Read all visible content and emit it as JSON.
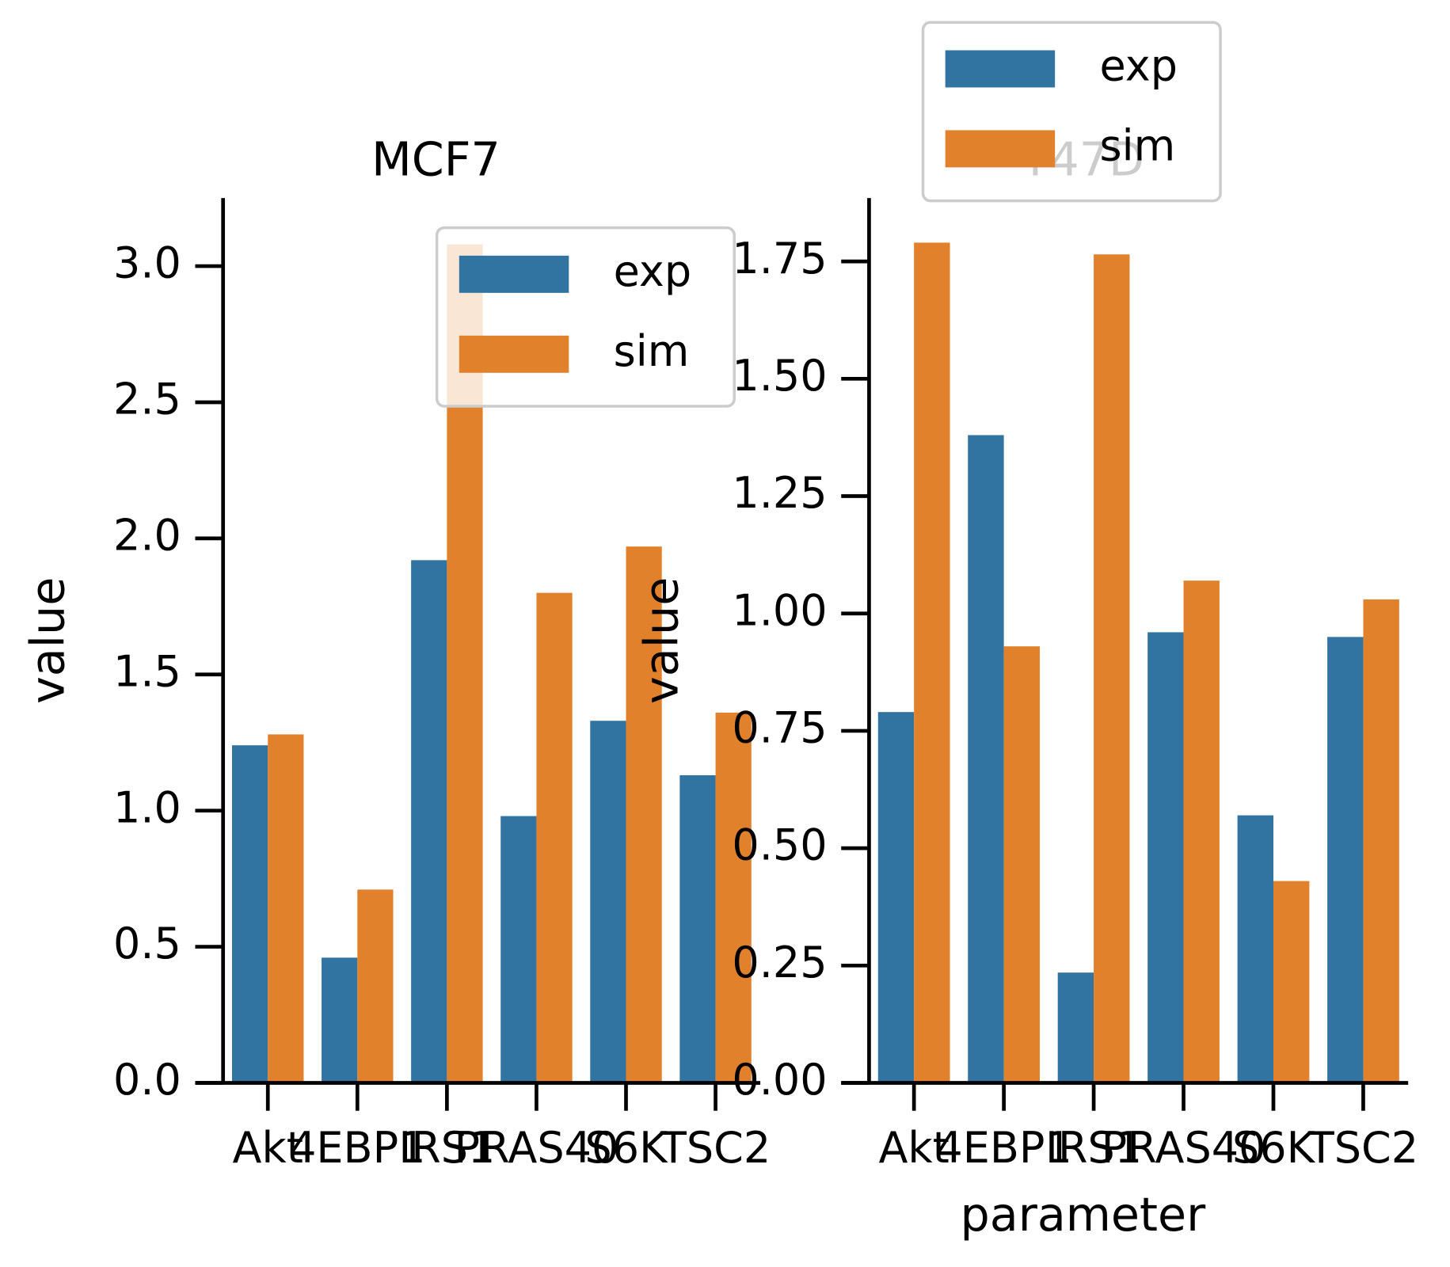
{
  "chart_data": [
    {
      "type": "bar",
      "title": "MCF7",
      "xlabel": null,
      "ylabel": "value",
      "categories": [
        "Akt",
        "4EBP1",
        "IRS1",
        "PRAS40",
        "S6K",
        "TSC2"
      ],
      "series": [
        {
          "name": "exp",
          "color": "#3274a1",
          "values": [
            1.24,
            0.46,
            1.92,
            0.98,
            1.33,
            1.13
          ]
        },
        {
          "name": "sim",
          "color": "#e1812c",
          "values": [
            1.28,
            0.71,
            3.08,
            1.8,
            1.97,
            1.36
          ]
        }
      ],
      "ylim": [
        0,
        3.25
      ],
      "yticks": [
        {
          "value": 0,
          "label": "0.0"
        },
        {
          "value": 0.5,
          "label": "0.5"
        },
        {
          "value": 1,
          "label": "1.0"
        },
        {
          "value": 1.5,
          "label": "1.5"
        },
        {
          "value": 2,
          "label": "2.0"
        },
        {
          "value": 2.5,
          "label": "2.5"
        },
        {
          "value": 3,
          "label": "3.0"
        }
      ],
      "legend": "upper right"
    },
    {
      "type": "bar",
      "title": "T47D",
      "xlabel": "parameter",
      "ylabel": "value",
      "categories": [
        "Akt",
        "4EBP1",
        "IRS1",
        "PRAS40",
        "S6K",
        "TSC2"
      ],
      "series": [
        {
          "name": "exp",
          "color": "#3274a1",
          "values": [
            0.79,
            1.38,
            0.235,
            0.96,
            0.57,
            0.95
          ]
        },
        {
          "name": "sim",
          "color": "#e1812c",
          "values": [
            1.79,
            0.93,
            1.765,
            1.07,
            0.43,
            1.03
          ]
        }
      ],
      "ylim": [
        0,
        1.885
      ],
      "yticks": [
        {
          "value": 0,
          "label": "0.00"
        },
        {
          "value": 0.25,
          "label": "0.25"
        },
        {
          "value": 0.5,
          "label": "0.50"
        },
        {
          "value": 0.75,
          "label": "0.75"
        },
        {
          "value": 1,
          "label": "1.00"
        },
        {
          "value": 1.25,
          "label": "1.25"
        },
        {
          "value": 1.5,
          "label": "1.50"
        },
        {
          "value": 1.75,
          "label": "1.75"
        }
      ],
      "legend": "upper center"
    }
  ]
}
